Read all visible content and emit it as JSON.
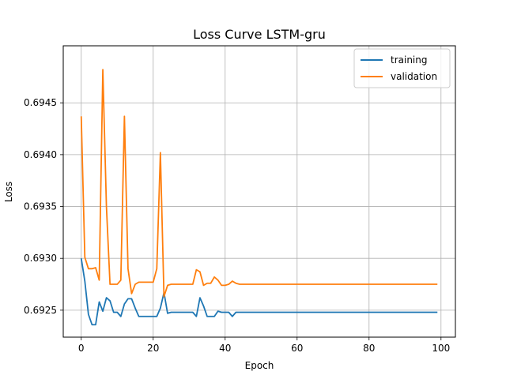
{
  "chart_data": {
    "type": "line",
    "title": "Loss Curve LSTM-gru",
    "xlabel": "Epoch",
    "ylabel": "Loss",
    "xlim": [
      -5,
      104
    ],
    "ylim": [
      0.69224,
      0.69505
    ],
    "xticks": [
      0,
      20,
      40,
      60,
      80,
      100
    ],
    "yticks": [
      0.6925,
      0.693,
      0.6935,
      0.694,
      0.6945
    ],
    "ytick_labels": [
      "0.6925",
      "0.6930",
      "0.6935",
      "0.6940",
      "0.6945"
    ],
    "grid": true,
    "legend_position": "top-right",
    "series": [
      {
        "name": "training",
        "color": "#1f77b4",
        "points": [
          [
            0,
            0.693
          ],
          [
            1,
            0.69278
          ],
          [
            2,
            0.69246
          ],
          [
            3,
            0.69236
          ],
          [
            4,
            0.69236
          ],
          [
            5,
            0.69258
          ],
          [
            6,
            0.69249
          ],
          [
            7,
            0.69262
          ],
          [
            8,
            0.69259
          ],
          [
            9,
            0.69248
          ],
          [
            10,
            0.69248
          ],
          [
            11,
            0.69244
          ],
          [
            12,
            0.69256
          ],
          [
            13,
            0.69261
          ],
          [
            14,
            0.69261
          ],
          [
            15,
            0.69252
          ],
          [
            16,
            0.69244
          ],
          [
            17,
            0.69244
          ],
          [
            18,
            0.69244
          ],
          [
            19,
            0.69244
          ],
          [
            20,
            0.69244
          ],
          [
            21,
            0.69244
          ],
          [
            22,
            0.69252
          ],
          [
            23,
            0.69267
          ],
          [
            24,
            0.69247
          ],
          [
            25,
            0.69248
          ],
          [
            26,
            0.69248
          ],
          [
            27,
            0.69248
          ],
          [
            28,
            0.69248
          ],
          [
            29,
            0.69248
          ],
          [
            30,
            0.69248
          ],
          [
            31,
            0.69248
          ],
          [
            32,
            0.69244
          ],
          [
            33,
            0.69262
          ],
          [
            34,
            0.69254
          ],
          [
            35,
            0.69244
          ],
          [
            36,
            0.69244
          ],
          [
            37,
            0.69244
          ],
          [
            38,
            0.69249
          ],
          [
            39,
            0.69248
          ],
          [
            40,
            0.69248
          ],
          [
            41,
            0.69248
          ],
          [
            42,
            0.69244
          ],
          [
            43,
            0.69248
          ],
          [
            44,
            0.69248
          ],
          [
            99,
            0.69248
          ]
        ]
      },
      {
        "name": "validation",
        "color": "#ff7f0e",
        "points": [
          [
            0,
            0.69437
          ],
          [
            1,
            0.69301
          ],
          [
            2,
            0.6929
          ],
          [
            3,
            0.6929
          ],
          [
            4,
            0.69291
          ],
          [
            5,
            0.69279
          ],
          [
            6,
            0.69482
          ],
          [
            7,
            0.6935
          ],
          [
            8,
            0.69275
          ],
          [
            9,
            0.69275
          ],
          [
            10,
            0.69275
          ],
          [
            11,
            0.69279
          ],
          [
            12,
            0.69437
          ],
          [
            13,
            0.6929
          ],
          [
            14,
            0.69266
          ],
          [
            15,
            0.69275
          ],
          [
            16,
            0.69277
          ],
          [
            17,
            0.69277
          ],
          [
            18,
            0.69277
          ],
          [
            19,
            0.69277
          ],
          [
            20,
            0.69277
          ],
          [
            21,
            0.6929
          ],
          [
            22,
            0.69402
          ],
          [
            23,
            0.69263
          ],
          [
            24,
            0.69274
          ],
          [
            25,
            0.69275
          ],
          [
            26,
            0.69275
          ],
          [
            27,
            0.69275
          ],
          [
            28,
            0.69275
          ],
          [
            29,
            0.69275
          ],
          [
            30,
            0.69275
          ],
          [
            31,
            0.69275
          ],
          [
            32,
            0.69289
          ],
          [
            33,
            0.69287
          ],
          [
            34,
            0.69274
          ],
          [
            35,
            0.69276
          ],
          [
            36,
            0.69276
          ],
          [
            37,
            0.69282
          ],
          [
            38,
            0.69279
          ],
          [
            39,
            0.69274
          ],
          [
            40,
            0.69274
          ],
          [
            41,
            0.69275
          ],
          [
            42,
            0.69278
          ],
          [
            43,
            0.69276
          ],
          [
            44,
            0.69275
          ],
          [
            99,
            0.69275
          ]
        ]
      }
    ]
  }
}
